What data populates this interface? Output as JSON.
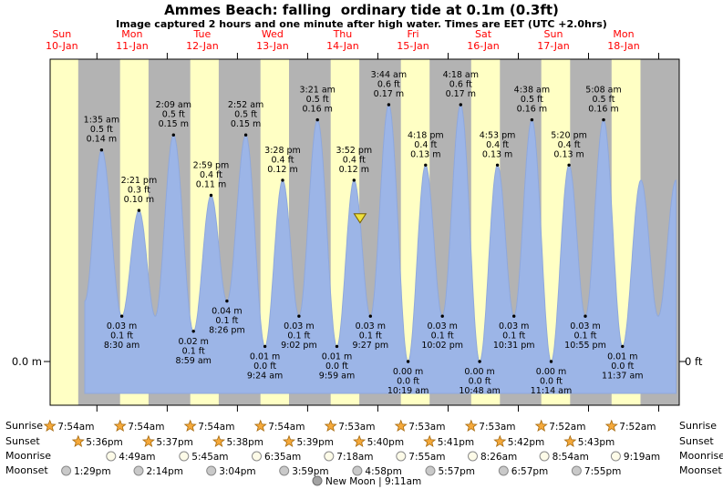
{
  "header": {
    "title": "Ammes Beach: falling  ordinary tide at 0.1m (0.3ft)",
    "subtitle": "Image captured 2 hours and one minute after high water. Times are EET (UTC +2.0hrs)"
  },
  "axes": {
    "left_label": "0.0 m",
    "right_label": "0 ft"
  },
  "footer_labels": {
    "sunrise": "Sunrise",
    "sunset": "Sunset",
    "moonrise": "Moonrise",
    "moonset": "Moonset"
  },
  "new_moon": {
    "text": "New Moon | 9:11am"
  },
  "chart_data": {
    "type": "area",
    "title": "Ammes Beach: falling  ordinary tide at 0.1m (0.3ft)",
    "x_range_hours": [
      8,
      223
    ],
    "ylim_m": [
      -0.03,
      0.2
    ],
    "days": [
      {
        "name": "Sun",
        "date": "10-Jan"
      },
      {
        "name": "Mon",
        "date": "11-Jan"
      },
      {
        "name": "Tue",
        "date": "12-Jan"
      },
      {
        "name": "Wed",
        "date": "13-Jan"
      },
      {
        "name": "Thu",
        "date": "14-Jan"
      },
      {
        "name": "Fri",
        "date": "15-Jan"
      },
      {
        "name": "Sat",
        "date": "16-Jan"
      },
      {
        "name": "Sun",
        "date": "17-Jan"
      },
      {
        "name": "Mon",
        "date": "18-Jan"
      }
    ],
    "extremes": [
      {
        "t": 19.83,
        "h": 0.04,
        "kind": "low"
      },
      {
        "t": 25.583,
        "h": 0.14,
        "kind": "high",
        "lines": [
          "1:35 am",
          "0.5 ft",
          "0.14 m"
        ]
      },
      {
        "t": 32.5,
        "h": 0.03,
        "kind": "low",
        "lines": [
          "0.03 m",
          "0.1 ft",
          "8:30 am"
        ]
      },
      {
        "t": 38.35,
        "h": 0.1,
        "kind": "high",
        "lines": [
          "2:21 pm",
          "0.3 ft",
          "0.10 m"
        ]
      },
      {
        "t": 43.92,
        "h": 0.03,
        "kind": "low"
      },
      {
        "t": 50.15,
        "h": 0.15,
        "kind": "high",
        "lines": [
          "2:09 am",
          "0.5 ft",
          "0.15 m"
        ]
      },
      {
        "t": 56.983,
        "h": 0.02,
        "kind": "low",
        "lines": [
          "0.02 m",
          "0.1 ft",
          "8:59 am"
        ]
      },
      {
        "t": 62.983,
        "h": 0.11,
        "kind": "high",
        "lines": [
          "2:59 pm",
          "0.4 ft",
          "0.11 m"
        ]
      },
      {
        "t": 68.433,
        "h": 0.04,
        "kind": "low",
        "lines": [
          "0.04 m",
          "0.1 ft",
          "8:26 pm"
        ]
      },
      {
        "t": 74.867,
        "h": 0.15,
        "kind": "high",
        "lines": [
          "2:52 am",
          "0.5 ft",
          "0.15 m"
        ]
      },
      {
        "t": 81.4,
        "h": 0.01,
        "kind": "low",
        "lines": [
          "0.01 m",
          "0.0 ft",
          "9:24 am"
        ]
      },
      {
        "t": 87.467,
        "h": 0.12,
        "kind": "high",
        "lines": [
          "3:28 pm",
          "0.4 ft",
          "0.12 m"
        ]
      },
      {
        "t": 93.033,
        "h": 0.03,
        "kind": "low",
        "lines": [
          "0.03 m",
          "0.1 ft",
          "9:02 pm"
        ]
      },
      {
        "t": 99.35,
        "h": 0.16,
        "kind": "high",
        "lines": [
          "3:21 am",
          "0.5 ft",
          "0.16 m"
        ]
      },
      {
        "t": 105.983,
        "h": 0.01,
        "kind": "low",
        "lines": [
          "0.01 m",
          "0.0 ft",
          "9:59 am"
        ]
      },
      {
        "t": 111.867,
        "h": 0.12,
        "kind": "high",
        "lines": [
          "3:52 pm",
          "0.4 ft",
          "0.12 m"
        ]
      },
      {
        "t": 117.45,
        "h": 0.03,
        "kind": "low",
        "lines": [
          "0.03 m",
          "0.1 ft",
          "9:27 pm"
        ]
      },
      {
        "t": 123.733,
        "h": 0.17,
        "kind": "high",
        "lines": [
          "3:44 am",
          "0.6 ft",
          "0.17 m"
        ]
      },
      {
        "t": 130.317,
        "h": 0.0,
        "kind": "low",
        "lines": [
          "0.00 m",
          "0.0 ft",
          "10:19 am"
        ]
      },
      {
        "t": 136.3,
        "h": 0.13,
        "kind": "high",
        "lines": [
          "4:18 pm",
          "0.4 ft",
          "0.13 m"
        ]
      },
      {
        "t": 142.033,
        "h": 0.03,
        "kind": "low",
        "lines": [
          "0.03 m",
          "0.1 ft",
          "10:02 pm"
        ]
      },
      {
        "t": 148.3,
        "h": 0.17,
        "kind": "high",
        "lines": [
          "4:18 am",
          "0.6 ft",
          "0.17 m"
        ]
      },
      {
        "t": 154.8,
        "h": 0.0,
        "kind": "low",
        "lines": [
          "0.00 m",
          "0.0 ft",
          "10:48 am"
        ]
      },
      {
        "t": 160.883,
        "h": 0.13,
        "kind": "high",
        "lines": [
          "4:53 pm",
          "0.4 ft",
          "0.13 m"
        ]
      },
      {
        "t": 166.517,
        "h": 0.03,
        "kind": "low",
        "lines": [
          "0.03 m",
          "0.1 ft",
          "10:31 pm"
        ]
      },
      {
        "t": 172.633,
        "h": 0.16,
        "kind": "high",
        "lines": [
          "4:38 am",
          "0.5 ft",
          "0.16 m"
        ]
      },
      {
        "t": 179.233,
        "h": 0.0,
        "kind": "low",
        "lines": [
          "0.00 m",
          "0.0 ft",
          "11:14 am"
        ]
      },
      {
        "t": 185.333,
        "h": 0.13,
        "kind": "high",
        "lines": [
          "5:20 pm",
          "0.4 ft",
          "0.13 m"
        ]
      },
      {
        "t": 190.917,
        "h": 0.03,
        "kind": "low",
        "lines": [
          "0.03 m",
          "0.1 ft",
          "10:55 pm"
        ]
      },
      {
        "t": 197.133,
        "h": 0.16,
        "kind": "high",
        "lines": [
          "5:08 am",
          "0.5 ft",
          "0.16 m"
        ]
      },
      {
        "t": 203.617,
        "h": 0.01,
        "kind": "low",
        "lines": [
          "0.01 m",
          "0.0 ft",
          "11:37 am"
        ]
      },
      {
        "t": 209.9,
        "h": 0.12,
        "kind": "high"
      },
      {
        "t": 215.8,
        "h": 0.03,
        "kind": "low"
      },
      {
        "t": 221.9,
        "h": 0.12,
        "kind": "high"
      }
    ],
    "current_marker": {
      "t": 113.9
    },
    "daylight": [
      {
        "day": 0,
        "from": 7.9,
        "to": 17.6
      },
      {
        "day": 1,
        "from": 7.9,
        "to": 17.617
      },
      {
        "day": 2,
        "from": 7.9,
        "to": 17.633
      },
      {
        "day": 3,
        "from": 7.9,
        "to": 17.65
      },
      {
        "day": 4,
        "from": 7.883,
        "to": 17.667
      },
      {
        "day": 5,
        "from": 7.883,
        "to": 17.683
      },
      {
        "day": 6,
        "from": 7.883,
        "to": 17.7
      },
      {
        "day": 7,
        "from": 7.867,
        "to": 17.717
      },
      {
        "day": 8,
        "from": 7.867,
        "to": 17.733
      }
    ],
    "sunrise": [
      {
        "day": 0,
        "hour": 7.9,
        "time": "7:54am"
      },
      {
        "day": 1,
        "hour": 7.9,
        "time": "7:54am"
      },
      {
        "day": 2,
        "hour": 7.9,
        "time": "7:54am"
      },
      {
        "day": 3,
        "hour": 7.9,
        "time": "7:54am"
      },
      {
        "day": 4,
        "hour": 7.883,
        "time": "7:53am"
      },
      {
        "day": 5,
        "hour": 7.883,
        "time": "7:53am"
      },
      {
        "day": 6,
        "hour": 7.883,
        "time": "7:53am"
      },
      {
        "day": 7,
        "hour": 7.867,
        "time": "7:52am"
      },
      {
        "day": 8,
        "hour": 7.867,
        "time": "7:52am"
      }
    ],
    "sunset": [
      {
        "day": 0,
        "hour": 17.6,
        "time": "5:36pm"
      },
      {
        "day": 1,
        "hour": 17.617,
        "time": "5:37pm"
      },
      {
        "day": 2,
        "hour": 17.633,
        "time": "5:38pm"
      },
      {
        "day": 3,
        "hour": 17.65,
        "time": "5:39pm"
      },
      {
        "day": 4,
        "hour": 17.667,
        "time": "5:40pm"
      },
      {
        "day": 5,
        "hour": 17.683,
        "time": "5:41pm"
      },
      {
        "day": 6,
        "hour": 17.7,
        "time": "5:42pm"
      },
      {
        "day": 7,
        "hour": 17.717,
        "time": "5:43pm"
      }
    ],
    "moonrise": [
      {
        "day": 1,
        "hour": 4.817,
        "time": "4:49am"
      },
      {
        "day": 2,
        "hour": 5.75,
        "time": "5:45am"
      },
      {
        "day": 3,
        "hour": 6.583,
        "time": "6:35am"
      },
      {
        "day": 4,
        "hour": 7.3,
        "time": "7:18am"
      },
      {
        "day": 5,
        "hour": 7.917,
        "time": "7:55am"
      },
      {
        "day": 6,
        "hour": 8.433,
        "time": "8:26am"
      },
      {
        "day": 7,
        "hour": 8.9,
        "time": "8:54am"
      },
      {
        "day": 8,
        "hour": 9.317,
        "time": "9:19am"
      }
    ],
    "moonset": [
      {
        "day": 0,
        "hour": 13.483,
        "time": "1:29pm"
      },
      {
        "day": 1,
        "hour": 14.233,
        "time": "2:14pm"
      },
      {
        "day": 2,
        "hour": 15.067,
        "time": "3:04pm"
      },
      {
        "day": 3,
        "hour": 15.983,
        "time": "3:59pm"
      },
      {
        "day": 4,
        "hour": 16.967,
        "time": "4:58pm"
      },
      {
        "day": 5,
        "hour": 17.95,
        "time": "5:57pm"
      },
      {
        "day": 6,
        "hour": 18.95,
        "time": "6:57pm"
      },
      {
        "day": 7,
        "hour": 19.917,
        "time": "7:55pm"
      }
    ],
    "colors": {
      "night": "#b3b3b3",
      "day": "#ffffc4",
      "tide": "#9cb5e7",
      "tide_edge": "#8fa8dc",
      "day_label": "#ff0000",
      "star": "#f5a93a",
      "star_edge": "#a66a10",
      "moon_light": "#fdfbe8",
      "moon_gray": "#c9c9c9",
      "new_moon": "#a3a3a3",
      "marker": "#efe13d"
    }
  }
}
